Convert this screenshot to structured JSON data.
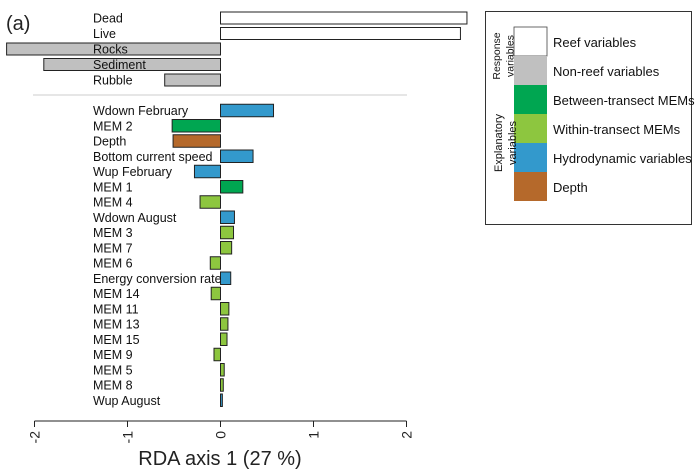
{
  "panel_label": "(a)",
  "chart_data": {
    "type": "bar",
    "orientation": "horizontal",
    "xlabel": "RDA axis 1 (27 %)",
    "ylabel": "",
    "xlim": [
      -2,
      2
    ],
    "xticks": [
      -2,
      -1,
      0,
      1,
      2
    ],
    "xtick_labels": [
      "-2",
      "-1",
      "0",
      "1",
      "2"
    ],
    "grid": false,
    "legend_position": "right",
    "colors": {
      "reef": "#ffffff",
      "nonreef": "#c0c0c0",
      "between": "#00a651",
      "within": "#8dc63f",
      "hydro": "#3399cc",
      "depth": "#b5692b"
    },
    "response": [
      {
        "label": "Dead",
        "value": 2.65,
        "group": "reef"
      },
      {
        "label": "Live",
        "value": 2.58,
        "group": "reef"
      },
      {
        "label": "Rocks",
        "value": -2.3,
        "group": "nonreef"
      },
      {
        "label": "Sediment",
        "value": -1.9,
        "group": "nonreef"
      },
      {
        "label": "Rubble",
        "value": -0.6,
        "group": "nonreef"
      }
    ],
    "explanatory": [
      {
        "label": "Wdown February",
        "value": 0.57,
        "group": "hydro"
      },
      {
        "label": "MEM 2",
        "value": -0.52,
        "group": "between"
      },
      {
        "label": "Depth",
        "value": -0.51,
        "group": "depth"
      },
      {
        "label": "Bottom current speed",
        "value": 0.35,
        "group": "hydro"
      },
      {
        "label": "Wup February",
        "value": -0.28,
        "group": "hydro"
      },
      {
        "label": "MEM 1",
        "value": 0.24,
        "group": "between"
      },
      {
        "label": "MEM 4",
        "value": -0.22,
        "group": "within"
      },
      {
        "label": "Wdown August",
        "value": 0.15,
        "group": "hydro"
      },
      {
        "label": "MEM 3",
        "value": 0.14,
        "group": "within"
      },
      {
        "label": "MEM 7",
        "value": 0.12,
        "group": "within"
      },
      {
        "label": "MEM 6",
        "value": -0.11,
        "group": "within"
      },
      {
        "label": "Energy conversion rate",
        "value": 0.11,
        "group": "hydro"
      },
      {
        "label": "MEM 14",
        "value": -0.1,
        "group": "within"
      },
      {
        "label": "MEM 11",
        "value": 0.09,
        "group": "within"
      },
      {
        "label": "MEM 13",
        "value": 0.08,
        "group": "within"
      },
      {
        "label": "MEM 15",
        "value": 0.07,
        "group": "within"
      },
      {
        "label": "MEM 9",
        "value": -0.07,
        "group": "within"
      },
      {
        "label": "MEM 5",
        "value": 0.04,
        "group": "within"
      },
      {
        "label": "MEM 8",
        "value": 0.03,
        "group": "within"
      },
      {
        "label": "Wup August",
        "value": 0.02,
        "group": "hydro"
      }
    ]
  },
  "legend": {
    "response_label": "Response variables",
    "explanatory_label": "Explanatory variables",
    "items": [
      {
        "label": "Reef variables",
        "group": "reef",
        "section": "response"
      },
      {
        "label": "Non-reef variables",
        "group": "nonreef",
        "section": "response"
      },
      {
        "label": "Between-transect MEMs",
        "group": "between",
        "section": "explanatory"
      },
      {
        "label": "Within-transect MEMs",
        "group": "within",
        "section": "explanatory"
      },
      {
        "label": "Hydrodynamic variables",
        "group": "hydro",
        "section": "explanatory"
      },
      {
        "label": "Depth",
        "group": "depth",
        "section": "explanatory"
      }
    ]
  }
}
